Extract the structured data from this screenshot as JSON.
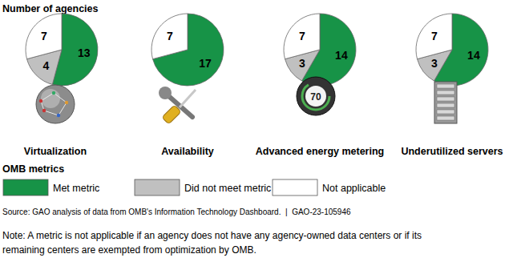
{
  "header": "Number of agencies",
  "chart_data": [
    {
      "type": "pie",
      "title": "Virtualization",
      "categories": [
        "Met metric",
        "Did not meet metric",
        "Not applicable"
      ],
      "values": [
        13,
        4,
        7
      ],
      "colors": [
        "#179347",
        "#c0c0c0",
        "#ffffff"
      ],
      "data_labels": true
    },
    {
      "type": "pie",
      "title": "Availability",
      "categories": [
        "Met metric",
        "Did not meet metric",
        "Not applicable"
      ],
      "values": [
        17,
        0,
        7
      ],
      "colors": [
        "#179347",
        "#c0c0c0",
        "#ffffff"
      ],
      "data_labels": true
    },
    {
      "type": "pie",
      "title": "Advanced energy metering",
      "categories": [
        "Met metric",
        "Did not meet metric",
        "Not applicable"
      ],
      "values": [
        14,
        3,
        7
      ],
      "colors": [
        "#179347",
        "#c0c0c0",
        "#ffffff"
      ],
      "data_labels": true,
      "annotation": "70"
    },
    {
      "type": "pie",
      "title": "Underutilized servers",
      "categories": [
        "Met metric",
        "Did not meet metric",
        "Not applicable"
      ],
      "values": [
        14,
        3,
        7
      ],
      "colors": [
        "#179347",
        "#c0c0c0",
        "#ffffff"
      ],
      "data_labels": true
    }
  ],
  "legend_title": "OMB metrics",
  "source": "Source: GAO analysis of data from OMB's Information Technology Dashboard.  |  GAO-23-105946",
  "note": [
    "Note: A metric is not applicable if an agency does not have any agency-owned data centers or if its",
    "remaining centers are exempted from optimization by OMB."
  ]
}
